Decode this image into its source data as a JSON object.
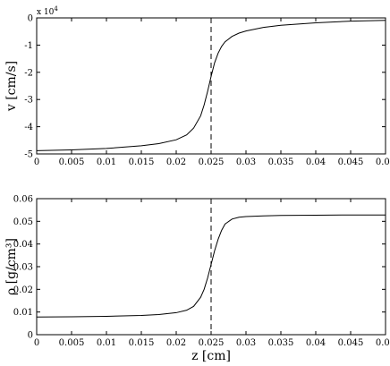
{
  "chart_data": [
    {
      "type": "line",
      "xlabel": "",
      "ylabel": "v [cm/s]",
      "y_exponent_label": {
        "base": "x 10",
        "exp": "4"
      },
      "xlim": [
        0,
        0.05
      ],
      "ylim": [
        -5,
        0
      ],
      "xticks": [
        0,
        0.005,
        0.01,
        0.015,
        0.02,
        0.025,
        0.03,
        0.035,
        0.04,
        0.045,
        0.05
      ],
      "xtick_labels": [
        "0",
        "0.005",
        "0.01",
        "0.015",
        "0.02",
        "0.025",
        "0.03",
        "0.035",
        "0.04",
        "0.045",
        "0.05"
      ],
      "yticks": [
        -5,
        -4,
        -3,
        -2,
        -1,
        0
      ],
      "ytick_labels": [
        "-5",
        "-4",
        "-3",
        "-2",
        "-1",
        "0"
      ],
      "grid": false,
      "vline": {
        "x": 0.025,
        "style": "dashed"
      },
      "series": [
        {
          "x": [
            0,
            0.005,
            0.01,
            0.015,
            0.0175,
            0.02,
            0.0215,
            0.0225,
            0.0235,
            0.024,
            0.0245,
            0.025,
            0.0255,
            0.026,
            0.0265,
            0.027,
            0.028,
            0.029,
            0.03,
            0.0325,
            0.035,
            0.04,
            0.045,
            0.05
          ],
          "y": [
            -4.88,
            -4.85,
            -4.8,
            -4.7,
            -4.62,
            -4.48,
            -4.3,
            -4.05,
            -3.6,
            -3.2,
            -2.7,
            -2.15,
            -1.65,
            -1.3,
            -1.05,
            -0.88,
            -0.68,
            -0.56,
            -0.48,
            -0.35,
            -0.27,
            -0.18,
            -0.12,
            -0.09
          ],
          "color": "#000000"
        }
      ]
    },
    {
      "type": "line",
      "xlabel": "z [cm]",
      "ylabel": "ρ [g/cm³]",
      "xlim": [
        0,
        0.05
      ],
      "ylim": [
        0,
        0.06
      ],
      "xticks": [
        0,
        0.005,
        0.01,
        0.015,
        0.02,
        0.025,
        0.03,
        0.035,
        0.04,
        0.045,
        0.05
      ],
      "xtick_labels": [
        "0",
        "0.005",
        "0.01",
        "0.015",
        "0.02",
        "0.025",
        "0.03",
        "0.035",
        "0.04",
        "0.045",
        "0.05"
      ],
      "yticks": [
        0,
        0.01,
        0.02,
        0.03,
        0.04,
        0.05,
        0.06
      ],
      "ytick_labels": [
        "0",
        "0.01",
        "0.02",
        "0.03",
        "0.04",
        "0.05",
        "0.06"
      ],
      "grid": false,
      "vline": {
        "x": 0.025,
        "style": "dashed"
      },
      "series": [
        {
          "x": [
            0,
            0.005,
            0.01,
            0.015,
            0.0175,
            0.02,
            0.0215,
            0.0225,
            0.0235,
            0.024,
            0.0245,
            0.025,
            0.0255,
            0.026,
            0.0265,
            0.027,
            0.028,
            0.029,
            0.03,
            0.0325,
            0.035,
            0.04,
            0.045,
            0.05
          ],
          "y": [
            0.0078,
            0.0079,
            0.0081,
            0.0085,
            0.0089,
            0.0097,
            0.0108,
            0.0125,
            0.0165,
            0.02,
            0.025,
            0.031,
            0.037,
            0.042,
            0.046,
            0.0488,
            0.051,
            0.0518,
            0.0521,
            0.0524,
            0.0526,
            0.0527,
            0.0528,
            0.0528
          ],
          "color": "#000000"
        }
      ]
    }
  ]
}
